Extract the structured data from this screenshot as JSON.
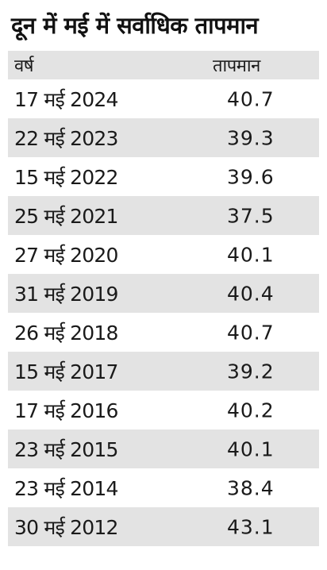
{
  "title": "दून में मई में सर्वाधिक तापमान",
  "headers": {
    "year": "वर्ष",
    "temperature": "तापमान"
  },
  "rows": [
    {
      "date": "17 मई 2024",
      "temp": "40.7"
    },
    {
      "date": "22 मई 2023",
      "temp": "39.3"
    },
    {
      "date": "15 मई 2022",
      "temp": "39.6"
    },
    {
      "date": "25 मई 2021",
      "temp": "37.5"
    },
    {
      "date": "27 मई 2020",
      "temp": "40.1"
    },
    {
      "date": "31 मई 2019",
      "temp": "40.4"
    },
    {
      "date": "26 मई 2018",
      "temp": "40.7"
    },
    {
      "date": "15 मई 2017",
      "temp": "39.2"
    },
    {
      "date": "17 मई 2016",
      "temp": "40.2"
    },
    {
      "date": "23 मई 2015",
      "temp": "40.1"
    },
    {
      "date": "23 मई 2014",
      "temp": "38.4"
    },
    {
      "date": "30 मई 2012",
      "temp": "43.1"
    }
  ],
  "colors": {
    "stripe": "#e3e3e3",
    "text": "#1a1a1a",
    "background": "#ffffff"
  }
}
